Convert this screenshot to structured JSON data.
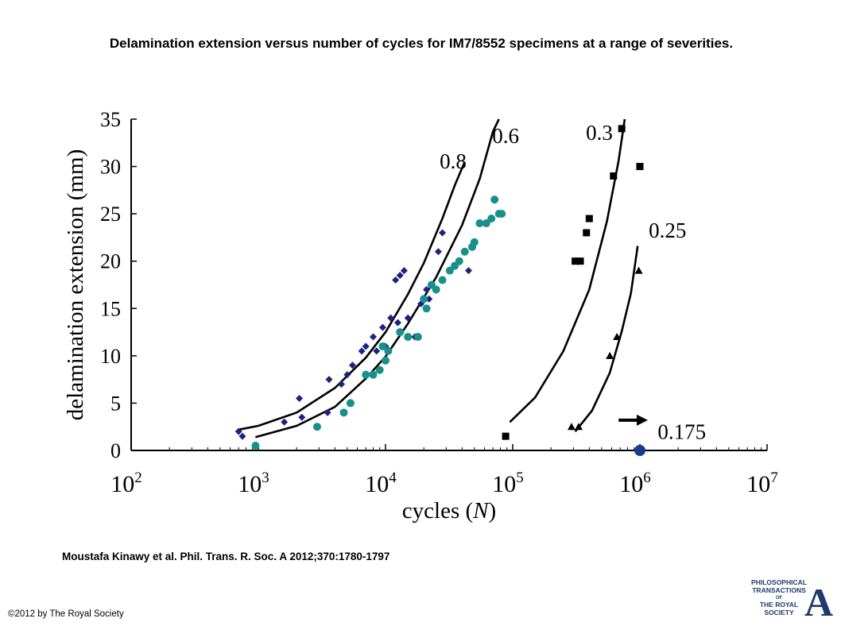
{
  "title": "Delamination extension versus number of cycles for IM7/8552 specimens at a range of severities.",
  "citation": "Moustafa Kinawy et al. Phil. Trans. R. Soc. A 2012;370:1780-1797",
  "copyright": "©2012 by The Royal Society",
  "logo": {
    "lines": [
      "PHILOSOPHICAL",
      "TRANSACTIONS",
      "OF",
      "THE ROYAL",
      "SOCIETY"
    ],
    "letter": "A",
    "color": "#1f3b6e"
  },
  "chart_data": {
    "type": "scatter",
    "xscale": "log",
    "xlim": [
      100,
      10000000
    ],
    "ylim": [
      0,
      35
    ],
    "xlabel_text": "cycles (",
    "xlabel_var": "N",
    "xlabel_close": ")",
    "ylabel": "delamination extension (mm)",
    "xticks": [
      {
        "value": 100,
        "exp": "2"
      },
      {
        "value": 1000,
        "exp": "3"
      },
      {
        "value": 10000,
        "exp": "4"
      },
      {
        "value": 100000,
        "exp": "5"
      },
      {
        "value": 1000000,
        "exp": "6"
      },
      {
        "value": 10000000,
        "exp": "7"
      }
    ],
    "yticks": [
      0,
      5,
      10,
      15,
      20,
      25,
      30,
      35
    ],
    "series": [
      {
        "marker": "diamond",
        "color": "#1a237e",
        "size": 4.5,
        "points": [
          [
            700,
            2
          ],
          [
            750,
            1.5
          ],
          [
            1600,
            3
          ],
          [
            2100,
            5.5
          ],
          [
            2200,
            3.5
          ],
          [
            3600,
            7.5
          ],
          [
            3500,
            4
          ],
          [
            4500,
            7
          ],
          [
            5000,
            8
          ],
          [
            5500,
            9
          ],
          [
            6500,
            10.5
          ],
          [
            7000,
            11
          ],
          [
            8000,
            12
          ],
          [
            8500,
            10.5
          ],
          [
            9500,
            13
          ],
          [
            10000,
            11
          ],
          [
            11000,
            14
          ],
          [
            12000,
            18
          ],
          [
            12500,
            13.5
          ],
          [
            13000,
            18.5
          ],
          [
            14000,
            19
          ],
          [
            15000,
            14
          ],
          [
            17000,
            12
          ],
          [
            19000,
            15.5
          ],
          [
            21000,
            17
          ],
          [
            22000,
            16
          ],
          [
            26000,
            21
          ],
          [
            28000,
            23
          ],
          [
            45000,
            19
          ]
        ]
      },
      {
        "marker": "circle",
        "color": "#17908a",
        "size": 5,
        "points": [
          [
            950,
            0.5
          ],
          [
            2900,
            2.5
          ],
          [
            4700,
            4
          ],
          [
            5300,
            5
          ],
          [
            7000,
            8
          ],
          [
            8000,
            8
          ],
          [
            9000,
            8.5
          ],
          [
            9500,
            11
          ],
          [
            10500,
            10.5
          ],
          [
            10000,
            9.5
          ],
          [
            13000,
            12.5
          ],
          [
            15000,
            12
          ],
          [
            18000,
            12
          ],
          [
            20000,
            16
          ],
          [
            21000,
            15
          ],
          [
            23000,
            17.5
          ],
          [
            25000,
            17
          ],
          [
            28000,
            18
          ],
          [
            32000,
            19
          ],
          [
            35000,
            19.5
          ],
          [
            38000,
            20
          ],
          [
            42000,
            21
          ],
          [
            48000,
            21.5
          ],
          [
            50000,
            22
          ],
          [
            55000,
            24
          ],
          [
            62000,
            24
          ],
          [
            68000,
            24.5
          ],
          [
            72000,
            26.5
          ],
          [
            78000,
            25
          ],
          [
            82000,
            25
          ]
        ]
      },
      {
        "marker": "square",
        "color": "#000000",
        "size": 4.5,
        "points": [
          [
            88000,
            1.5
          ],
          [
            310000,
            20
          ],
          [
            340000,
            20
          ],
          [
            380000,
            23
          ],
          [
            400000,
            24.5
          ],
          [
            620000,
            29
          ],
          [
            720000,
            34
          ],
          [
            1000000,
            30
          ]
        ]
      },
      {
        "marker": "triangle",
        "color": "#000000",
        "size": 5,
        "points": [
          [
            290000,
            2.5
          ],
          [
            330000,
            2.5
          ],
          [
            580000,
            10
          ],
          [
            660000,
            12
          ],
          [
            980000,
            19
          ]
        ]
      },
      {
        "marker": "bigcircle",
        "color": "#1a3a8c",
        "size": 7,
        "points": [
          [
            1000000,
            0
          ]
        ]
      }
    ],
    "curves": [
      {
        "label": "0.8",
        "label_at": [
          34000,
          29.8
        ],
        "points": [
          [
            700,
            2.2
          ],
          [
            1000,
            2.6
          ],
          [
            2000,
            4.0
          ],
          [
            4000,
            6.6
          ],
          [
            7000,
            9.8
          ],
          [
            10000,
            12.5
          ],
          [
            15000,
            16.5
          ],
          [
            20000,
            19.8
          ],
          [
            28000,
            24.5
          ],
          [
            35000,
            28
          ],
          [
            42000,
            30.5
          ]
        ]
      },
      {
        "label": "0.6",
        "label_at": [
          88000,
          32.5
        ],
        "points": [
          [
            950,
            1.4
          ],
          [
            2000,
            2.6
          ],
          [
            4000,
            4.6
          ],
          [
            7000,
            7.6
          ],
          [
            10000,
            9.9
          ],
          [
            15000,
            13.4
          ],
          [
            25000,
            18.3
          ],
          [
            40000,
            23.8
          ],
          [
            55000,
            28.7
          ],
          [
            70000,
            33.7
          ],
          [
            78000,
            35
          ]
        ]
      },
      {
        "label": "0.3",
        "label_at": [
          480000,
          32.8
        ],
        "points": [
          [
            95000,
            3.0
          ],
          [
            150000,
            5.6
          ],
          [
            250000,
            10.5
          ],
          [
            400000,
            17.0
          ],
          [
            550000,
            24.2
          ],
          [
            680000,
            30.6
          ],
          [
            760000,
            35
          ]
        ]
      },
      {
        "label": "0.25",
        "label_at": [
          1650000,
          22.5
        ],
        "points": [
          [
            310000,
            2.0
          ],
          [
            420000,
            4.2
          ],
          [
            580000,
            8.2
          ],
          [
            720000,
            12.6
          ],
          [
            850000,
            16.6
          ],
          [
            960000,
            21.6
          ]
        ]
      }
    ],
    "annotation": {
      "label": "0.175",
      "label_at": [
        1650000,
        1.2
      ],
      "arrow_from": [
        680000,
        3.2
      ],
      "arrow_to": [
        1000000,
        3.2
      ]
    }
  }
}
